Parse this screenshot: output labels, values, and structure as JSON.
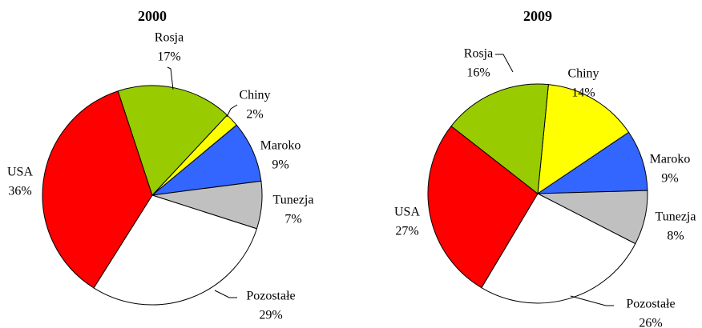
{
  "chart_data": [
    {
      "type": "pie",
      "title": "2000",
      "categories": [
        "Chiny",
        "Maroko",
        "Tunezja",
        "Pozostałe",
        "USA",
        "Rosja"
      ],
      "values": [
        2,
        9,
        7,
        29,
        36,
        17
      ],
      "value_labels": [
        "2%",
        "9%",
        "7%",
        "29%",
        "36%",
        "17%"
      ],
      "colors": [
        "#ffff00",
        "#3366ff",
        "#c0c0c0",
        "#ffffff",
        "#ff0000",
        "#99cc00"
      ]
    },
    {
      "type": "pie",
      "title": "2009",
      "categories": [
        "Chiny",
        "Maroko",
        "Tunezja",
        "Pozostałe",
        "USA",
        "Rosja"
      ],
      "values": [
        14,
        9,
        8,
        26,
        27,
        16
      ],
      "value_labels": [
        "14%",
        "9%",
        "8%",
        "26%",
        "27%",
        "16%"
      ],
      "colors": [
        "#ffff00",
        "#3366ff",
        "#c0c0c0",
        "#ffffff",
        "#ff0000",
        "#99cc00"
      ]
    }
  ]
}
